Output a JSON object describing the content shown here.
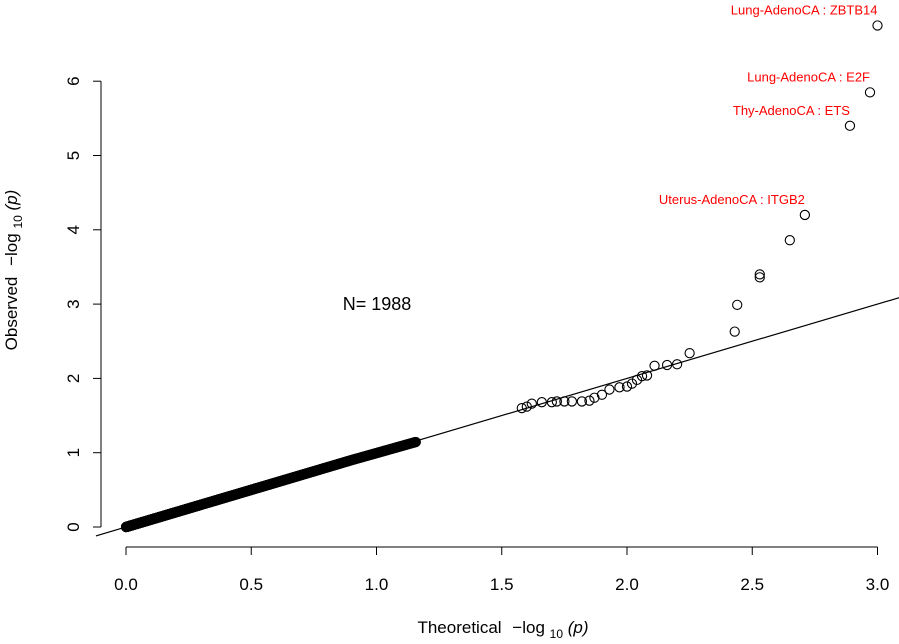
{
  "chart_data": {
    "type": "scatter",
    "xlabel_main": "Theoretical",
    "ylabel_main": "Observed",
    "axis_fn": "−log",
    "axis_sub": "10",
    "axis_arg": "(p)",
    "xlim": [
      0.0,
      3.0
    ],
    "ylim": [
      0,
      6.8
    ],
    "x_ticks": [
      "0.0",
      "0.5",
      "1.0",
      "1.5",
      "2.0",
      "2.5",
      "3.0"
    ],
    "y_ticks": [
      "0",
      "1",
      "2",
      "3",
      "4",
      "5",
      "6"
    ],
    "count_label": "N= 1988",
    "reference_line": {
      "slope": 1,
      "intercept": 0
    },
    "point_color": "#000000",
    "highlight_color": "#ff0000",
    "annotations": [
      {
        "label": "Lung-AdenoCA : ZBTB14",
        "x": 3.0,
        "y": 6.75
      },
      {
        "label": "Lung-AdenoCA : E2F",
        "x": 2.97,
        "y": 5.85
      },
      {
        "label": "Thy-AdenoCA : ETS",
        "x": 2.89,
        "y": 5.4
      },
      {
        "label": "Uterus-AdenoCA : ITGB2",
        "x": 2.71,
        "y": 4.2
      }
    ],
    "tail_points": [
      [
        1.58,
        1.6
      ],
      [
        1.6,
        1.62
      ],
      [
        1.62,
        1.66
      ],
      [
        1.66,
        1.68
      ],
      [
        1.7,
        1.68
      ],
      [
        1.72,
        1.69
      ],
      [
        1.75,
        1.69
      ],
      [
        1.78,
        1.69
      ],
      [
        1.82,
        1.69
      ],
      [
        1.85,
        1.7
      ],
      [
        1.87,
        1.74
      ],
      [
        1.9,
        1.78
      ],
      [
        1.93,
        1.85
      ],
      [
        1.97,
        1.88
      ],
      [
        2.0,
        1.89
      ],
      [
        2.02,
        1.93
      ],
      [
        2.04,
        1.98
      ],
      [
        2.06,
        2.03
      ],
      [
        2.08,
        2.04
      ],
      [
        2.11,
        2.17
      ],
      [
        2.16,
        2.18
      ],
      [
        2.2,
        2.19
      ],
      [
        2.25,
        2.34
      ],
      [
        2.43,
        2.63
      ],
      [
        2.44,
        2.99
      ],
      [
        2.53,
        3.36
      ],
      [
        2.53,
        3.4
      ],
      [
        2.65,
        3.86
      ],
      [
        2.71,
        4.2
      ],
      [
        2.89,
        5.4
      ],
      [
        2.97,
        5.85
      ],
      [
        3.0,
        6.75
      ]
    ]
  }
}
